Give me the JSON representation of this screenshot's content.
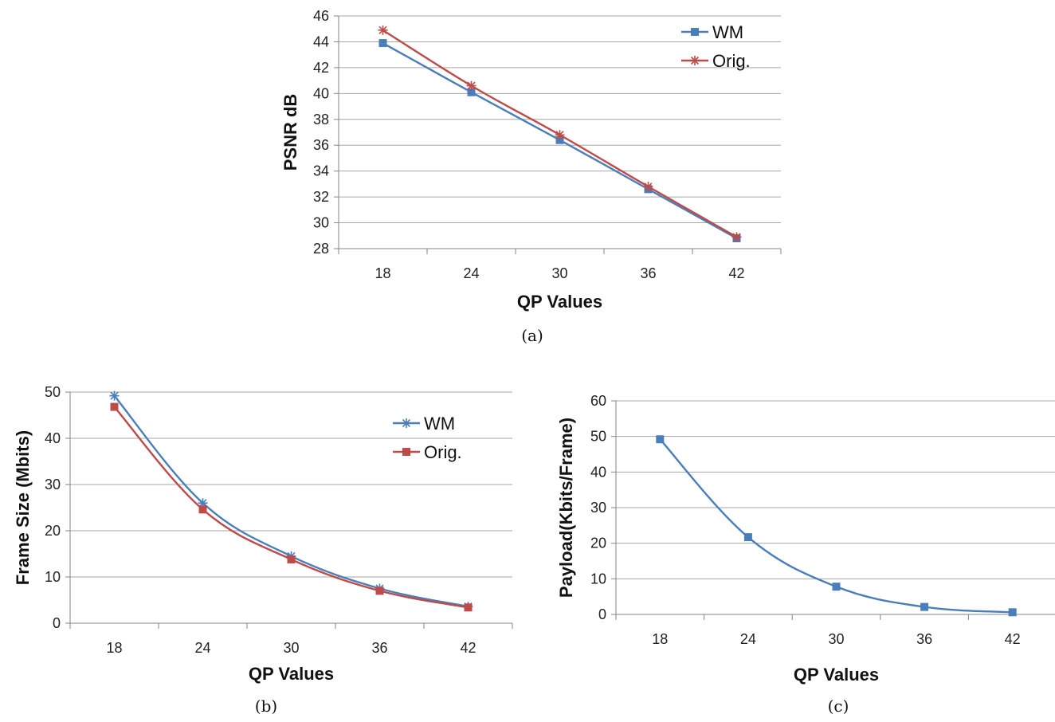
{
  "colors": {
    "blue": "#4a7ebb",
    "red": "#be4b48",
    "grid": "#a6a6a6",
    "axis": "#868686"
  },
  "chart_data": [
    {
      "type": "line",
      "caption": "(a)",
      "categories": [
        "18",
        "24",
        "30",
        "36",
        "42"
      ],
      "xlabel": "QP Values",
      "ylabel": "PSNR dB",
      "ylim": [
        28,
        46
      ],
      "ytick_step": 2,
      "grid": true,
      "legend_position": "top-right",
      "series": [
        {
          "name": "WM",
          "marker": "square",
          "color": "#4a7ebb",
          "values": [
            43.9,
            40.1,
            36.4,
            32.6,
            28.8
          ]
        },
        {
          "name": "Orig.",
          "marker": "star",
          "color": "#be4b48",
          "values": [
            44.9,
            40.6,
            36.8,
            32.8,
            28.9
          ]
        }
      ]
    },
    {
      "type": "line",
      "caption": "(b)",
      "categories": [
        "18",
        "24",
        "30",
        "36",
        "42"
      ],
      "xlabel": "QP Values",
      "ylabel": "Frame Size (Mbits)",
      "ylim": [
        0,
        50
      ],
      "ytick_step": 10,
      "grid": true,
      "legend_position": "top-right",
      "series": [
        {
          "name": "WM",
          "marker": "star",
          "color": "#4a7ebb",
          "values": [
            49.2,
            26.0,
            14.5,
            7.5,
            3.6
          ]
        },
        {
          "name": "Orig.",
          "marker": "square",
          "color": "#be4b48",
          "values": [
            46.8,
            24.6,
            13.8,
            7.0,
            3.4
          ]
        }
      ]
    },
    {
      "type": "line",
      "caption": "(c)",
      "categories": [
        "18",
        "24",
        "30",
        "36",
        "42"
      ],
      "xlabel": "QP Values",
      "ylabel": "Payload(Kbits/Frame)",
      "ylim": [
        0,
        60
      ],
      "ytick_step": 10,
      "grid": true,
      "series": [
        {
          "marker": "square",
          "color": "#4a7ebb",
          "values": [
            49.2,
            21.7,
            7.8,
            2.1,
            0.6
          ]
        }
      ]
    }
  ]
}
